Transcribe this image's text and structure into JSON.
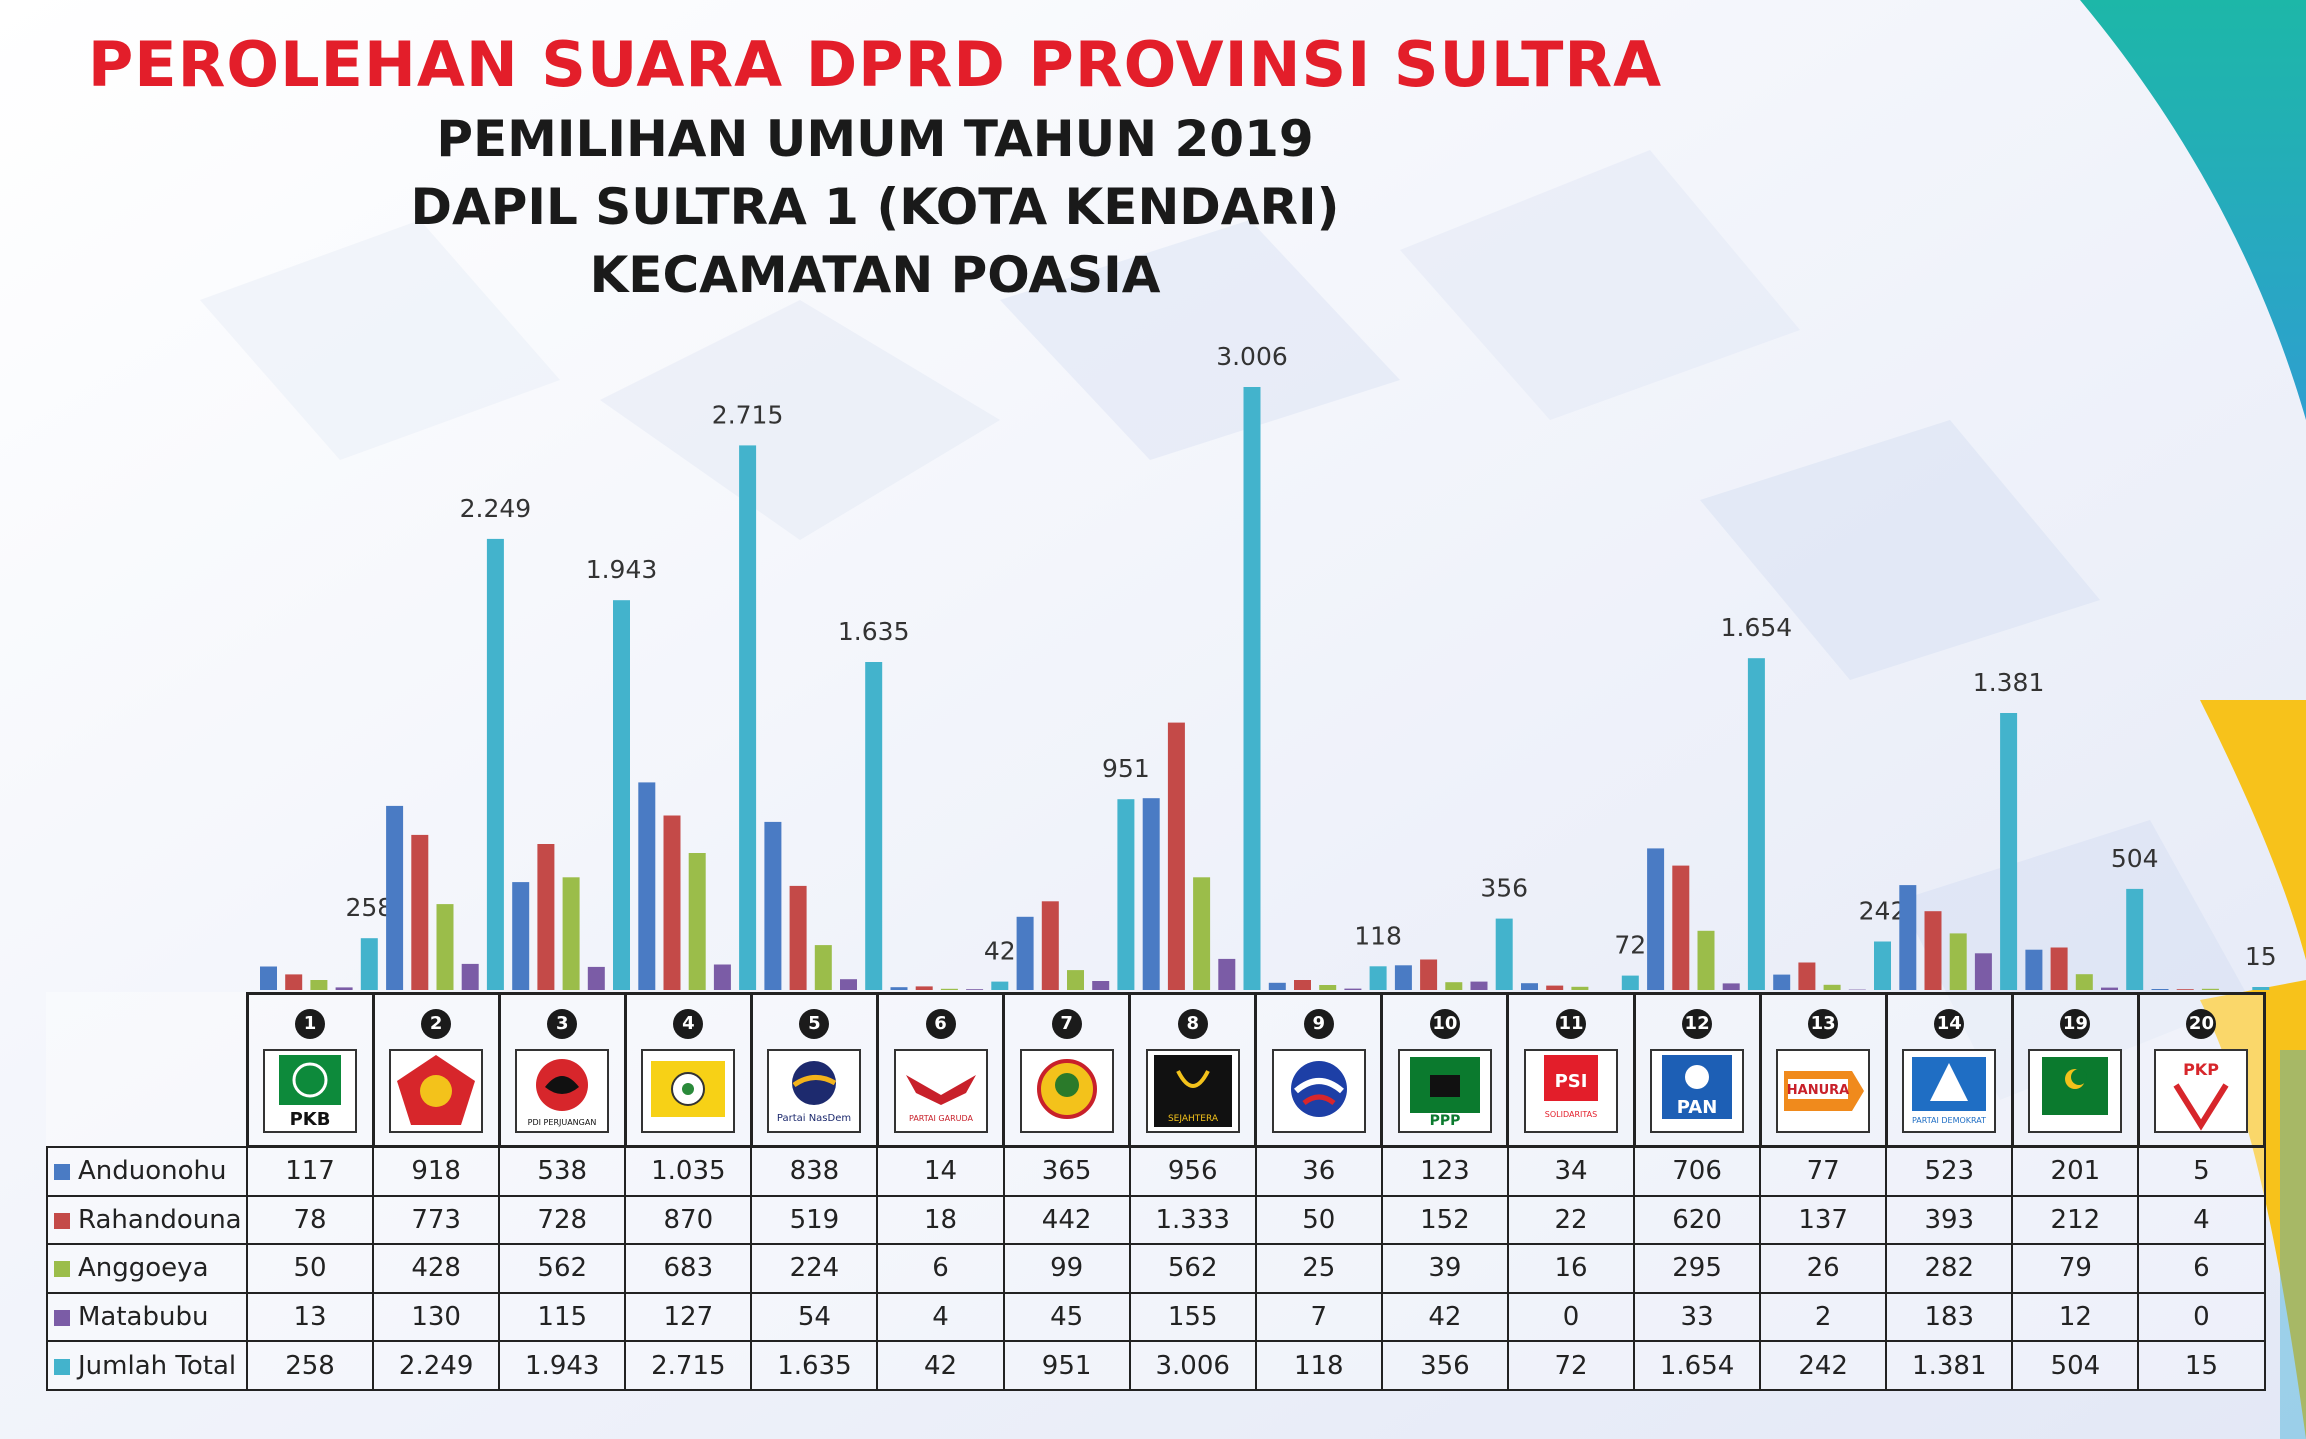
{
  "title": "PEROLEHAN SUARA DPRD PROVINSI SULTRA",
  "subtitles": [
    "PEMILIHAN UMUM TAHUN 2019",
    "DAPIL SULTRA 1 (KOTA KENDARI)",
    "KECAMATAN POASIA"
  ],
  "colors": {
    "title": "#e31e2a",
    "anduonohu": "#4a7bc4",
    "rahandouna": "#c44a48",
    "anggoeya": "#9bbd4a",
    "matabubu": "#7b5ca6",
    "total": "#43b3cc"
  },
  "chart_data": {
    "type": "bar",
    "title": "PEROLEHAN SUARA DPRD PROVINSI SULTRA",
    "categories": [
      "1",
      "2",
      "3",
      "4",
      "5",
      "6",
      "7",
      "8",
      "9",
      "10",
      "11",
      "12",
      "13",
      "14",
      "19",
      "20"
    ],
    "series": [
      {
        "name": "Anduonohu",
        "values": [
          117,
          918,
          538,
          1035,
          838,
          14,
          365,
          956,
          36,
          123,
          34,
          706,
          77,
          523,
          201,
          5
        ]
      },
      {
        "name": "Rahandouna",
        "values": [
          78,
          773,
          728,
          870,
          519,
          18,
          442,
          1333,
          50,
          152,
          22,
          620,
          137,
          393,
          212,
          4
        ]
      },
      {
        "name": "Anggoeya",
        "values": [
          50,
          428,
          562,
          683,
          224,
          6,
          99,
          562,
          25,
          39,
          16,
          295,
          26,
          282,
          79,
          6
        ]
      },
      {
        "name": "Matabubu",
        "values": [
          13,
          130,
          115,
          127,
          54,
          4,
          45,
          155,
          7,
          42,
          0,
          33,
          2,
          183,
          12,
          0
        ]
      },
      {
        "name": "Jumlah Total",
        "values": [
          258,
          2249,
          1943,
          2715,
          1635,
          42,
          951,
          3006,
          118,
          356,
          72,
          1654,
          242,
          1381,
          504,
          15
        ]
      }
    ],
    "data_labels": [
      "258",
      "2.249",
      "1.943",
      "2.715",
      "1.635",
      "42",
      "951",
      "3.006",
      "118",
      "356",
      "72",
      "1.654",
      "242",
      "1.381",
      "504",
      "15"
    ],
    "ylim": [
      0,
      3006
    ],
    "grid": false,
    "legend": "table-left"
  },
  "parties": [
    {
      "number": "1",
      "logo_text": "PKB",
      "logo": "pkb-logo"
    },
    {
      "number": "2",
      "logo_text": "",
      "logo": "gerindra-logo"
    },
    {
      "number": "3",
      "logo_text": "PDI PERJUANGAN",
      "logo": "pdip-logo"
    },
    {
      "number": "4",
      "logo_text": "",
      "logo": "golkar-logo"
    },
    {
      "number": "5",
      "logo_text": "Partai NasDem",
      "logo": "nasdem-logo"
    },
    {
      "number": "6",
      "logo_text": "PARTAI GARUDA",
      "logo": "garuda-logo"
    },
    {
      "number": "7",
      "logo_text": "",
      "logo": "berkarya-logo"
    },
    {
      "number": "8",
      "logo_text": "SEJAHTERA",
      "logo": "pks-logo"
    },
    {
      "number": "9",
      "logo_text": "",
      "logo": "perindo-logo"
    },
    {
      "number": "10",
      "logo_text": "PPP",
      "logo": "ppp-logo"
    },
    {
      "number": "11",
      "logo_text": "PSI",
      "logo": "psi-logo"
    },
    {
      "number": "12",
      "logo_text": "PAN",
      "logo": "pan-logo"
    },
    {
      "number": "13",
      "logo_text": "HANURA",
      "logo": "hanura-logo"
    },
    {
      "number": "14",
      "logo_text": "PARTAI DEMOKRAT",
      "logo": "demokrat-logo"
    },
    {
      "number": "19",
      "logo_text": "",
      "logo": "pbb-logo"
    },
    {
      "number": "20",
      "logo_text": "PKP",
      "logo": "pkpi-logo"
    }
  ],
  "table": {
    "rows": [
      {
        "label": "Anduonohu",
        "values": [
          "117",
          "918",
          "538",
          "1.035",
          "838",
          "14",
          "365",
          "956",
          "36",
          "123",
          "34",
          "706",
          "77",
          "523",
          "201",
          "5"
        ]
      },
      {
        "label": "Rahandouna",
        "values": [
          "78",
          "773",
          "728",
          "870",
          "519",
          "18",
          "442",
          "1.333",
          "50",
          "152",
          "22",
          "620",
          "137",
          "393",
          "212",
          "4"
        ]
      },
      {
        "label": "Anggoeya",
        "values": [
          "50",
          "428",
          "562",
          "683",
          "224",
          "6",
          "99",
          "562",
          "25",
          "39",
          "16",
          "295",
          "26",
          "282",
          "79",
          "6"
        ]
      },
      {
        "label": "Matabubu",
        "values": [
          "13",
          "130",
          "115",
          "127",
          "54",
          "4",
          "45",
          "155",
          "7",
          "42",
          "0",
          "33",
          "2",
          "183",
          "12",
          "0"
        ]
      },
      {
        "label": "Jumlah Total",
        "values": [
          "258",
          "2.249",
          "1.943",
          "2.715",
          "1.635",
          "42",
          "951",
          "3.006",
          "118",
          "356",
          "72",
          "1.654",
          "242",
          "1.381",
          "504",
          "15"
        ]
      }
    ]
  }
}
